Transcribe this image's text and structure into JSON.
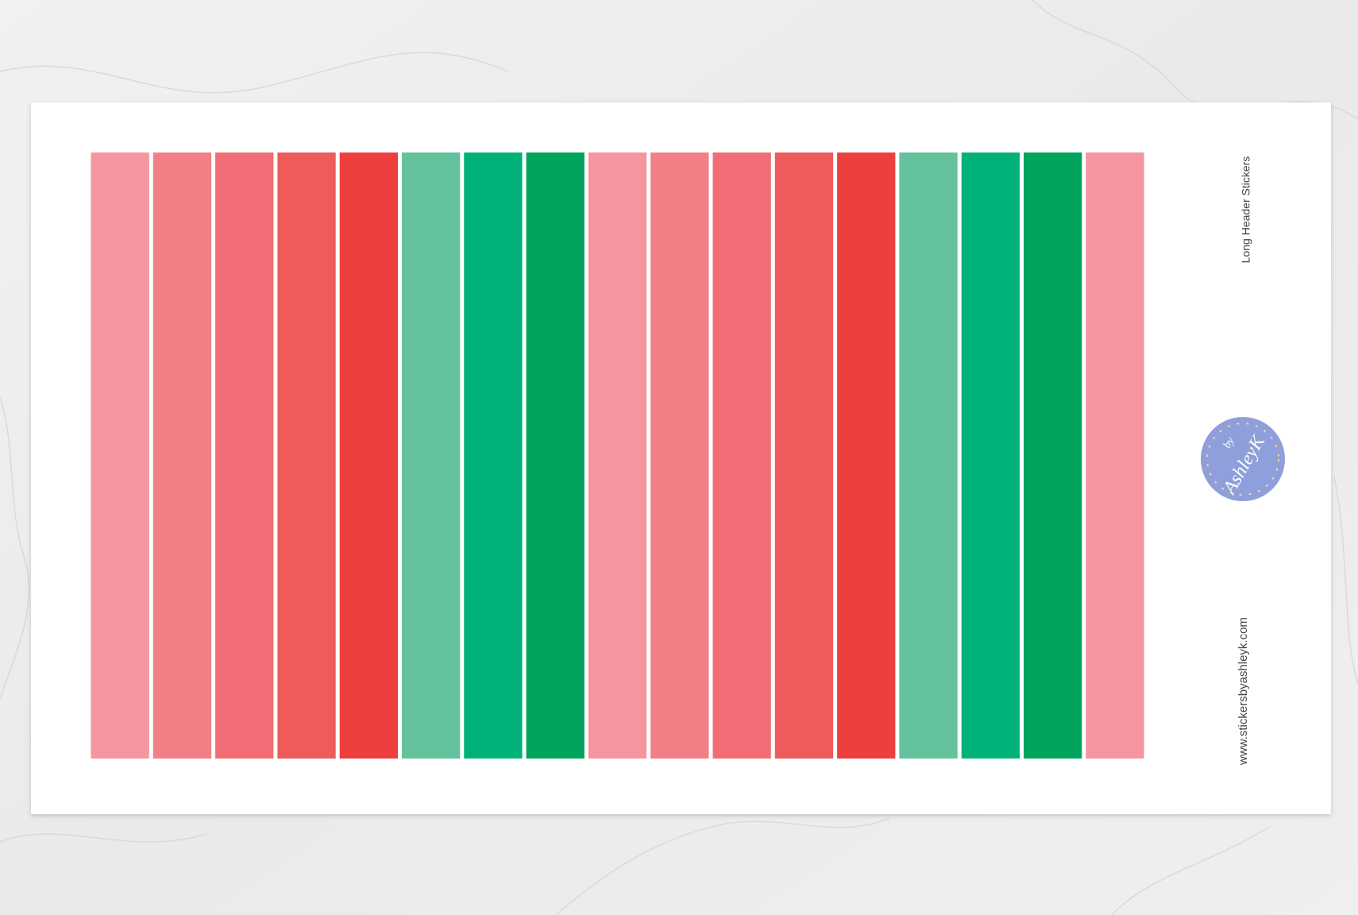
{
  "sheet": {
    "title": "Long Header Stickers",
    "website": "www.stickersbyashleyk.com",
    "logo": {
      "small": "by",
      "name": "AshleyK"
    }
  }
}
